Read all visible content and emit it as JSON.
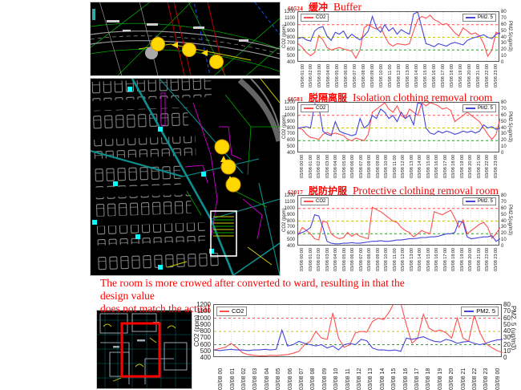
{
  "colors": {
    "co2_line": "#ff5050",
    "pm25_line": "#4545d8",
    "title_red": "#ff0000",
    "marker_yellow": "#ffd800",
    "ref_1000": "#ff5050",
    "ref_800": "#c8c800",
    "ref_600": "#2e9e2e",
    "cad_teal": "#0d8f8f",
    "cad_cyan": "#00ffff",
    "highlight_red": "#ff0000"
  },
  "note": {
    "lines": [
      "The room is more crowed after converted to ward, resulting in that the design value",
      "does not match the actual demand for fresh air."
    ]
  },
  "chart_data": [
    {
      "type": "line",
      "code": "60524",
      "title_zh": "缓冲",
      "title_en": "Buffer",
      "ylabel_left": "CO2 (ppm)",
      "ylabel_right": "PM2.5(ug/m3)",
      "ylim_left": [
        400,
        1200
      ],
      "ylim_right": [
        0,
        80
      ],
      "yticks_left": [
        400,
        500,
        600,
        700,
        800,
        900,
        1000,
        1100,
        1200
      ],
      "yticks_right": [
        0,
        10,
        20,
        30,
        40,
        50,
        60,
        70,
        80
      ],
      "reference_lines": [
        {
          "value": 1000,
          "color": "#ff5050"
        },
        {
          "value": 800,
          "color": "#c8c800"
        },
        {
          "value": 600,
          "color": "#2e9e2e"
        }
      ],
      "x_labels": [
        "03/08 01:00",
        "03/08 02:00",
        "03/08 03:00",
        "03/08 04:00",
        "03/08 05:00",
        "03/08 06:00",
        "03/08 07:00",
        "03/08 08:00",
        "03/08 09:00",
        "03/08 10:00",
        "03/08 11:00",
        "03/08 12:00",
        "03/08 13:00",
        "03/08 14:00",
        "03/08 15:00",
        "03/08 16:00",
        "03/08 17:00",
        "03/08 18:00",
        "03/08 19:00",
        "03/08 20:00",
        "03/08 21:00",
        "03/08 22:00",
        "03/08 23:00"
      ],
      "series": [
        {
          "name": "CO2",
          "color": "#ff5050",
          "axis": "left",
          "values": [
            700,
            640,
            560,
            510,
            560,
            830,
            760,
            640,
            600,
            620,
            640,
            615,
            600,
            580,
            470,
            600,
            950,
            1000,
            960,
            930,
            970,
            820,
            700,
            660,
            700,
            690,
            680,
            700,
            900,
            1080,
            1130,
            1100,
            1150,
            1080,
            1050,
            1000,
            1020,
            950,
            870,
            820,
            950,
            900,
            850,
            870,
            820,
            700,
            500,
            600,
            880,
            850
          ]
        },
        {
          "name": "PM2. 5",
          "color": "#4545d8",
          "axis": "right",
          "values": [
            38,
            40,
            36,
            34,
            50,
            55,
            57,
            42,
            35,
            48,
            45,
            50,
            38,
            45,
            40,
            36,
            42,
            50,
            73,
            55,
            48,
            60,
            50,
            55,
            45,
            52,
            48,
            45,
            77,
            80,
            55,
            30,
            28,
            25,
            30,
            28,
            26,
            30,
            32,
            30,
            28,
            35,
            38,
            40,
            42,
            44,
            40,
            38,
            45,
            47
          ]
        }
      ]
    },
    {
      "type": "line",
      "code": "60581",
      "title_zh": "脱隔离服",
      "title_en": "Isolation clothing removal room",
      "ylabel_left": "CO2 (ppm)",
      "ylabel_right": "PM2.5(ug/m3)",
      "ylim_left": [
        400,
        1200
      ],
      "ylim_right": [
        0,
        80
      ],
      "yticks_left": [
        400,
        500,
        600,
        700,
        800,
        900,
        1000,
        1100,
        1200
      ],
      "yticks_right": [
        0,
        10,
        20,
        30,
        40,
        50,
        60,
        70,
        80
      ],
      "reference_lines": [
        {
          "value": 1000,
          "color": "#ff5050"
        },
        {
          "value": 800,
          "color": "#c8c800"
        },
        {
          "value": 600,
          "color": "#2e9e2e"
        }
      ],
      "x_labels": [
        "03/08 00:00",
        "03/08 01:00",
        "03/08 02:00",
        "03/08 03:00",
        "03/08 04:00",
        "03/08 05:00",
        "03/08 06:00",
        "03/08 07:00",
        "03/08 08:00",
        "03/08 09:00",
        "03/08 10:00",
        "03/08 11:00",
        "03/08 12:00",
        "03/08 13:00",
        "03/08 14:00",
        "03/08 15:00",
        "03/08 16:00",
        "03/08 17:00",
        "03/08 18:00",
        "03/08 19:00",
        "03/08 20:00",
        "03/08 21:00",
        "03/08 22:00",
        "03/08 23:00"
      ],
      "series": [
        {
          "name": "CO2",
          "color": "#ff5050",
          "axis": "left",
          "values": [
            800,
            780,
            700,
            650,
            640,
            620,
            700,
            730,
            700,
            720,
            700,
            680,
            620,
            600,
            640,
            620,
            600,
            700,
            1050,
            1100,
            1150,
            1200,
            1100,
            1050,
            1150,
            1000,
            950,
            1100,
            1050,
            1000,
            1200,
            1150,
            1200,
            1180,
            1150,
            1100,
            1120,
            1080,
            900,
            950,
            1000,
            1050,
            1000,
            950,
            900,
            800,
            700,
            620,
            700,
            950
          ]
        },
        {
          "name": "PM2. 5",
          "color": "#4545d8",
          "axis": "right",
          "values": [
            40,
            41,
            42,
            40,
            78,
            75,
            35,
            30,
            28,
            50,
            35,
            32,
            30,
            28,
            30,
            55,
            40,
            45,
            60,
            55,
            70,
            65,
            55,
            60,
            50,
            65,
            55,
            60,
            45,
            80,
            78,
            40,
            32,
            30,
            35,
            32,
            35,
            33,
            30,
            32,
            35,
            33,
            35,
            32,
            35,
            45,
            40,
            42,
            38,
            40
          ]
        }
      ]
    },
    {
      "type": "line",
      "code": "62017",
      "title_zh": "脱防护服",
      "title_en": "Protective clothing removal room",
      "ylabel_left": "CO2 (ppm)",
      "ylabel_right": "PM2.5(ug/m3)",
      "ylim_left": [
        400,
        1200
      ],
      "ylim_right": [
        0,
        80
      ],
      "yticks_left": [
        400,
        500,
        600,
        700,
        800,
        900,
        1000,
        1100,
        1200
      ],
      "yticks_right": [
        0,
        10,
        20,
        30,
        40,
        50,
        60,
        70,
        80
      ],
      "reference_lines": [
        {
          "value": 1000,
          "color": "#ff5050"
        },
        {
          "value": 800,
          "color": "#c8c800"
        },
        {
          "value": 600,
          "color": "#2e9e2e"
        }
      ],
      "x_labels": [
        "03/08 00:00",
        "03/08 01:00",
        "03/08 02:00",
        "03/08 03:00",
        "03/08 04:00",
        "03/08 05:00",
        "03/08 06:00",
        "03/08 07:00",
        "03/08 08:00",
        "03/08 09:00",
        "03/08 10:00",
        "03/08 11:00",
        "03/08 12:00",
        "03/08 13:00",
        "03/08 14:00",
        "03/08 15:00",
        "03/08 16:00",
        "03/08 17:00",
        "03/08 18:00",
        "03/08 19:00",
        "03/08 20:00",
        "03/08 21:00",
        "03/08 22:00",
        "03/08 23:00"
      ],
      "series": [
        {
          "name": "CO2",
          "color": "#ff5050",
          "axis": "left",
          "values": [
            580,
            700,
            650,
            600,
            520,
            500,
            800,
            780,
            600,
            550,
            520,
            540,
            620,
            560,
            600,
            560,
            540,
            520,
            1020,
            980,
            950,
            900,
            850,
            800,
            780,
            700,
            650,
            620,
            550,
            600,
            650,
            620,
            600,
            950,
            920,
            900,
            940,
            970,
            850,
            700,
            820,
            600,
            650,
            700,
            750,
            780,
            700,
            530,
            600,
            700
          ]
        },
        {
          "name": "PM2. 5",
          "color": "#4545d8",
          "axis": "right",
          "values": [
            20,
            22,
            25,
            30,
            50,
            48,
            30,
            8,
            5,
            4,
            4,
            5,
            5,
            6,
            5,
            5,
            6,
            7,
            8,
            8,
            9,
            8,
            8,
            9,
            10,
            10,
            11,
            12,
            12,
            13,
            14,
            14,
            15,
            15,
            16,
            18,
            20,
            20,
            22,
            40,
            38,
            15,
            12,
            13,
            14,
            15,
            15,
            17,
            8,
            12
          ]
        }
      ]
    },
    {
      "type": "line",
      "code": "",
      "title_zh": "",
      "title_en": "",
      "ylabel_left": "CO2 (ppm)",
      "ylabel_right": "PM2. 5 (ug/m3)",
      "ylim_left": [
        400,
        1200
      ],
      "ylim_right": [
        0,
        80
      ],
      "yticks_left": [
        400,
        500,
        600,
        700,
        800,
        900,
        1000,
        1100,
        1200
      ],
      "yticks_right": [
        0,
        10,
        20,
        30,
        40,
        50,
        60,
        70,
        80
      ],
      "reference_lines": [
        {
          "value": 1000,
          "color": "#ff5050"
        },
        {
          "value": 800,
          "color": "#c8c800"
        },
        {
          "value": 600,
          "color": "#2e9e2e"
        }
      ],
      "x_labels": [
        "03/08 00",
        "03/08 01",
        "03/08 02",
        "03/08 03",
        "03/08 04",
        "03/08 05",
        "03/08 06",
        "03/08 07",
        "03/08 08",
        "03/08 09",
        "03/08 10",
        "03/08 11",
        "03/08 12",
        "03/08 13",
        "03/08 14",
        "03/08 15",
        "03/08 16",
        "03/08 17",
        "03/08 18",
        "03/08 19",
        "03/08 20",
        "03/08 21",
        "03/08 22",
        "03/08 23",
        "03/09 00"
      ],
      "series": [
        {
          "name": "CO2",
          "color": "#ff5050",
          "axis": "left",
          "values": [
            520,
            540,
            560,
            620,
            560,
            480,
            450,
            440,
            430,
            430,
            440,
            435,
            445,
            450,
            470,
            500,
            600,
            650,
            800,
            700,
            680,
            1080,
            700,
            560,
            600,
            780,
            800,
            790,
            950,
            1000,
            980,
            1100,
            1260,
            1230,
            900,
            620,
            700,
            1060,
            850,
            800,
            820,
            780,
            700,
            1000,
            700,
            650,
            1050,
            780,
            620,
            560,
            510,
            480
          ]
        },
        {
          "name": "PM2. 5",
          "color": "#4545d8",
          "axis": "right",
          "values": [
            12,
            11,
            12,
            13,
            12,
            12,
            11,
            12,
            12,
            13,
            12,
            13,
            42,
            18,
            20,
            25,
            22,
            20,
            18,
            20,
            15,
            18,
            12,
            20,
            22,
            20,
            28,
            26,
            15,
            12,
            12,
            11,
            12,
            10,
            30,
            28,
            30,
            32,
            28,
            25,
            24,
            28,
            26,
            22,
            24,
            25,
            22,
            20,
            22,
            25,
            27,
            28
          ]
        }
      ]
    }
  ]
}
